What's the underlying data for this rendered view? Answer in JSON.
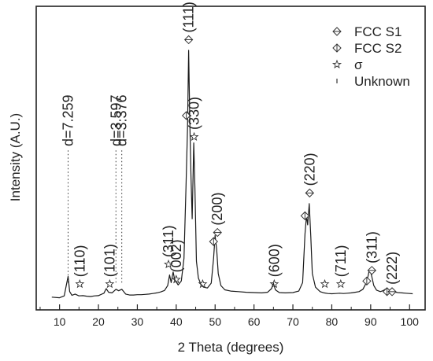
{
  "chart_data": {
    "type": "line",
    "xlabel": "2 Theta (degrees)",
    "ylabel": "Intensity (A.U.)",
    "xlim": [
      4,
      104
    ],
    "ylim": [
      0,
      100
    ],
    "xticks": [
      10,
      20,
      30,
      40,
      50,
      60,
      70,
      80,
      90,
      100
    ],
    "series": [
      {
        "points": [
          [
            8,
            4.2
          ],
          [
            10,
            4.0
          ],
          [
            11.2,
            4.6
          ],
          [
            11.8,
            8.5
          ],
          [
            12.2,
            11.0
          ],
          [
            12.6,
            6.0
          ],
          [
            13.2,
            4.8
          ],
          [
            14,
            5.2
          ],
          [
            15,
            4.6
          ],
          [
            16,
            4.7
          ],
          [
            17,
            4.5
          ],
          [
            18,
            4.4
          ],
          [
            19,
            4.6
          ],
          [
            20,
            4.7
          ],
          [
            21.4,
            5.5
          ],
          [
            22,
            7.0
          ],
          [
            22.6,
            5.8
          ],
          [
            23.5,
            5.6
          ],
          [
            24.5,
            6.8
          ],
          [
            25.2,
            6.3
          ],
          [
            26,
            6.8
          ],
          [
            27,
            5.2
          ],
          [
            28,
            4.9
          ],
          [
            29,
            4.9
          ],
          [
            30,
            5.0
          ],
          [
            31,
            5.0
          ],
          [
            32,
            5.1
          ],
          [
            33,
            5.2
          ],
          [
            34,
            5.4
          ],
          [
            35,
            5.6
          ],
          [
            36,
            5.9
          ],
          [
            37,
            6.4
          ],
          [
            37.8,
            8.0
          ],
          [
            38.3,
            11.5
          ],
          [
            38.7,
            9.0
          ],
          [
            39.2,
            12.5
          ],
          [
            39.6,
            10.0
          ],
          [
            40.5,
            8.2
          ],
          [
            41.3,
            9.5
          ],
          [
            42,
            17
          ],
          [
            42.5,
            40
          ],
          [
            42.9,
            60
          ],
          [
            43.2,
            85.5
          ],
          [
            43.5,
            62
          ],
          [
            43.8,
            44
          ],
          [
            44.1,
            30
          ],
          [
            44.5,
            55
          ],
          [
            44.8,
            40
          ],
          [
            45.2,
            16
          ],
          [
            45.7,
            10.5
          ],
          [
            46.3,
            8.5
          ],
          [
            47,
            7.5
          ],
          [
            48,
            7.2
          ],
          [
            49,
            8.8
          ],
          [
            49.6,
            17
          ],
          [
            50,
            24.5
          ],
          [
            50.4,
            20
          ],
          [
            50.8,
            12
          ],
          [
            51.5,
            8.0
          ],
          [
            52.5,
            6.6
          ],
          [
            54,
            6.2
          ],
          [
            56,
            6.0
          ],
          [
            58,
            5.8
          ],
          [
            60,
            5.7
          ],
          [
            62,
            5.6
          ],
          [
            63.5,
            5.8
          ],
          [
            64.5,
            7.0
          ],
          [
            65,
            8.8
          ],
          [
            65.5,
            6.6
          ],
          [
            66.5,
            5.7
          ],
          [
            68,
            5.6
          ],
          [
            70,
            5.7
          ],
          [
            71.5,
            6.2
          ],
          [
            72.5,
            9.0
          ],
          [
            73.1,
            25
          ],
          [
            73.5,
            31
          ],
          [
            73.8,
            28
          ],
          [
            74.2,
            35
          ],
          [
            74.6,
            24
          ],
          [
            75,
            12
          ],
          [
            75.8,
            7.5
          ],
          [
            77,
            6.0
          ],
          [
            78,
            5.6
          ],
          [
            79,
            5.4
          ],
          [
            80,
            5.3
          ],
          [
            81,
            5.4
          ],
          [
            82,
            5.5
          ],
          [
            83,
            5.4
          ],
          [
            84,
            5.5
          ],
          [
            85,
            5.6
          ],
          [
            86,
            5.8
          ],
          [
            87,
            6.0
          ],
          [
            88,
            6.8
          ],
          [
            88.7,
            8.5
          ],
          [
            89.3,
            11
          ],
          [
            89.7,
            13.5
          ],
          [
            90.2,
            11.5
          ],
          [
            90.8,
            8.0
          ],
          [
            91.5,
            6.5
          ],
          [
            92.5,
            6.0
          ],
          [
            93.3,
            6.4
          ],
          [
            94,
            7.0
          ],
          [
            94.6,
            6.4
          ],
          [
            95.3,
            6.2
          ],
          [
            96,
            5.9
          ],
          [
            97,
            5.7
          ],
          [
            98,
            5.6
          ],
          [
            99,
            5.5
          ],
          [
            100,
            5.4
          ],
          [
            100.8,
            5.3
          ]
        ]
      }
    ],
    "legend": {
      "position": "top-right",
      "entries": [
        {
          "label": "FCC S1",
          "marker": "diamond-h"
        },
        {
          "label": "FCC S2",
          "marker": "diamond-v"
        },
        {
          "label": "σ",
          "marker": "star"
        },
        {
          "label": "Unknown",
          "marker": "bar"
        }
      ]
    },
    "d_labels": [
      {
        "x": 12.2,
        "text": "d=7.259"
      },
      {
        "x": 24.5,
        "text": "d=3.597"
      },
      {
        "x": 26.0,
        "text": "d=3.376"
      }
    ],
    "annotations": [
      {
        "x": 15.2,
        "y": 8.5,
        "marker": "star",
        "text": "(110)"
      },
      {
        "x": 22.9,
        "y": 8.5,
        "marker": "star",
        "text": "(101)"
      },
      {
        "x": 38.0,
        "y": 15.0,
        "marker": "star",
        "text": "(311)"
      },
      {
        "x": 40.0,
        "y": 10.0,
        "marker": "star",
        "text": "(002)"
      },
      {
        "x": 43.2,
        "y": 89.0,
        "marker": "diamond-h",
        "text": "(111)"
      },
      {
        "x": 42.6,
        "y": 64.0,
        "marker": "diamond-v",
        "text": ""
      },
      {
        "x": 44.6,
        "y": 57.0,
        "marker": "star",
        "text": "(330)"
      },
      {
        "x": 46.8,
        "y": 8.5,
        "marker": "star",
        "text": ""
      },
      {
        "x": 49.6,
        "y": 22.5,
        "marker": "diamond-v",
        "text": ""
      },
      {
        "x": 50.6,
        "y": 25.5,
        "marker": "diamond-h",
        "text": "(200)"
      },
      {
        "x": 65.2,
        "y": 8.5,
        "marker": "star",
        "text": "(600)"
      },
      {
        "x": 73.1,
        "y": 31.0,
        "marker": "diamond-v",
        "text": ""
      },
      {
        "x": 74.3,
        "y": 38.5,
        "marker": "diamond-h",
        "text": "(220)"
      },
      {
        "x": 78.2,
        "y": 8.5,
        "marker": "star",
        "text": ""
      },
      {
        "x": 82.3,
        "y": 8.5,
        "marker": "star",
        "text": "(711)"
      },
      {
        "x": 89.0,
        "y": 9.5,
        "marker": "diamond-v",
        "text": ""
      },
      {
        "x": 90.3,
        "y": 13.0,
        "marker": "diamond-h",
        "text": "(311)"
      },
      {
        "x": 94.2,
        "y": 6.0,
        "marker": "diamond-v",
        "text": ""
      },
      {
        "x": 95.5,
        "y": 6.0,
        "marker": "diamond-h",
        "text": "(222)"
      }
    ],
    "grid": false
  }
}
